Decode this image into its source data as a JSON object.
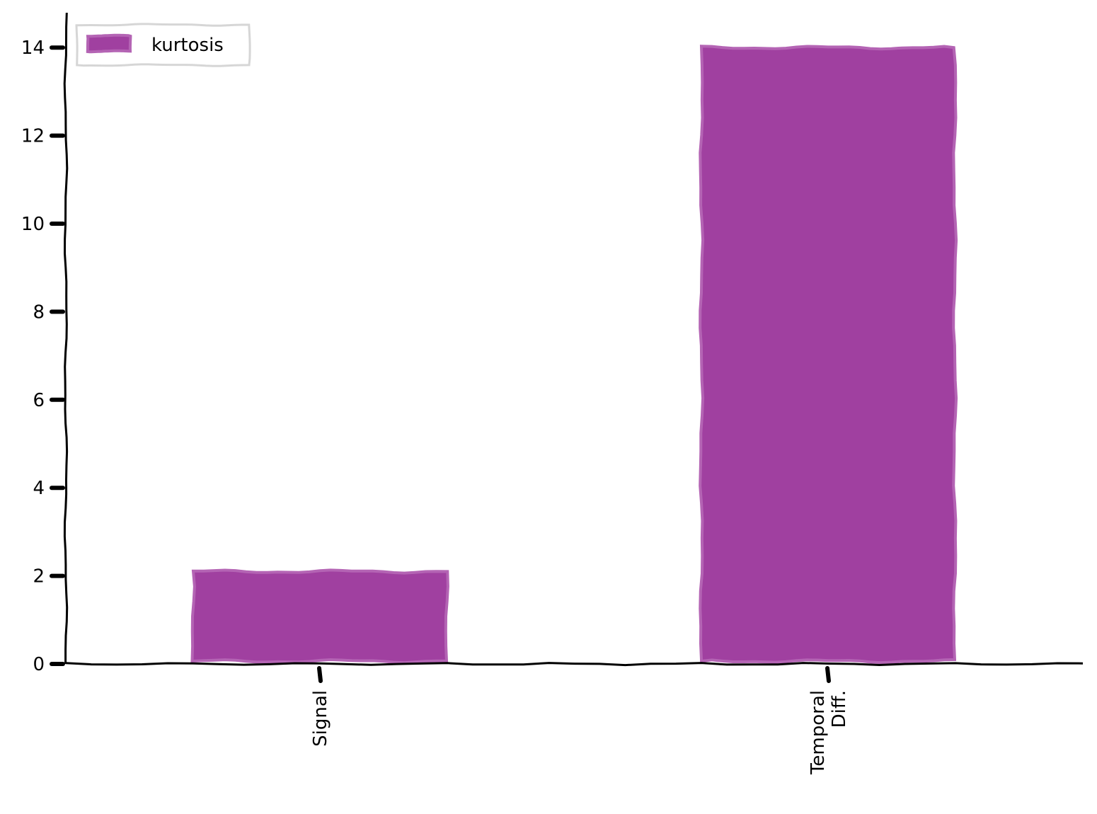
{
  "chart_data": {
    "type": "bar",
    "categories": [
      "Signal",
      "Temporal\nDiff."
    ],
    "series": [
      {
        "name": "kurtosis",
        "values": [
          2.1,
          14.0
        ]
      }
    ],
    "title": "",
    "xlabel": "",
    "ylabel": "",
    "ylim": [
      0,
      14.8
    ],
    "yticks": [
      0,
      2,
      4,
      6,
      8,
      10,
      12,
      14
    ],
    "grid": false,
    "legend": "top-left",
    "colors": {
      "bar_fill": "#a040a0",
      "bar_edge": "#b464b4",
      "axis": "#000000",
      "legend_border": "#d6d6d6"
    }
  }
}
